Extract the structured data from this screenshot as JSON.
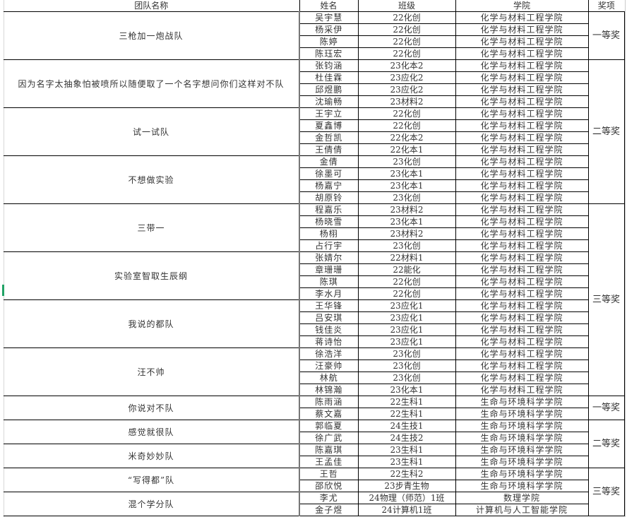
{
  "headers": {
    "team": "团队名称",
    "name": "姓名",
    "class": "班级",
    "college": "学院",
    "award": "奖项"
  },
  "teams": [
    {
      "team": "三枪加一炮战队",
      "members": [
        [
          "吴宇慧",
          "22化创",
          "化学与材料工程学院"
        ],
        [
          "杨采伊",
          "22化创",
          "化学与材料工程学院"
        ],
        [
          "陈婷",
          "22化创",
          "化学与材料工程学院"
        ],
        [
          "陈珏宏",
          "22化创",
          "化学与材料工程学院"
        ]
      ]
    },
    {
      "team": "因为名字太抽象怕被喷所以随便取了一个名字想问你们这样对不队",
      "members": [
        [
          "张钧涵",
          "23化本2",
          "化学与材料工程学院"
        ],
        [
          "杜佳霖",
          "23应化2",
          "化学与材料工程学院"
        ],
        [
          "邱煜鹏",
          "23应化2",
          "化学与材料工程学院"
        ],
        [
          "沈瑜畅",
          "23材料2",
          "化学与材料工程学院"
        ]
      ]
    },
    {
      "team": "试一试队",
      "members": [
        [
          "王宇立",
          "22化创",
          "化学与材料工程学院"
        ],
        [
          "夏鑫博",
          "22化创",
          "化学与材料工程学院"
        ],
        [
          "金哲凯",
          "22化本2",
          "化学与材料工程学院"
        ],
        [
          "王倩倩",
          "22化本1",
          "化学与材料工程学院"
        ]
      ]
    },
    {
      "team": "不想做实验",
      "members": [
        [
          "金倩",
          "23化创",
          "化学与材料工程学院"
        ],
        [
          "徐墨可",
          "23化本1",
          "化学与材料工程学院"
        ],
        [
          "杨嘉宁",
          "23化本1",
          "化学与材料工程学院"
        ],
        [
          "胡原铃",
          "23化创",
          "化学与材料工程学院"
        ]
      ]
    },
    {
      "team": "三带一",
      "members": [
        [
          "程嘉乐",
          "23材料2",
          "化学与材料工程学院"
        ],
        [
          "杨晓雪",
          "23化本1",
          "化学与材料工程学院"
        ],
        [
          "杨栩",
          "23材料2",
          "化学与材料工程学院"
        ],
        [
          "占行宇",
          "23化创",
          "化学与材料工程学院"
        ]
      ]
    },
    {
      "team": "实验室智取生辰纲",
      "members": [
        [
          "张婧尔",
          "22材料1",
          "化学与材料工程学院"
        ],
        [
          "章珊珊",
          "22能化",
          "化学与材料工程学院"
        ],
        [
          "陈琪",
          "22化创",
          "化学与材料工程学院"
        ],
        [
          "李水月",
          "22化创",
          "化学与材料工程学院"
        ]
      ]
    },
    {
      "team": "我说的都队",
      "members": [
        [
          "王华锋",
          "23应化1",
          "化学与材料工程学院"
        ],
        [
          "吕安琪",
          "23应化1",
          "化学与材料工程学院"
        ],
        [
          "钱佳炎",
          "23应化1",
          "化学与材料工程学院"
        ],
        [
          "蒋诗怡",
          "23应化1",
          "化学与材料工程学院"
        ]
      ]
    },
    {
      "team": "汪不帅",
      "members": [
        [
          "徐浩洋",
          "23化创",
          "化学与材料工程学院"
        ],
        [
          "汪豪帅",
          "23化创",
          "化学与材料工程学院"
        ],
        [
          "林航",
          "23化创",
          "化学与材料工程学院"
        ],
        [
          "林锦瀚",
          "23化本1",
          "化学与材料工程学院"
        ]
      ]
    },
    {
      "team": "你说对不队",
      "members": [
        [
          "陈雨涵",
          "22生科1",
          "生命与环境科学学院"
        ],
        [
          "蔡文嘉",
          "22生科1",
          "生命与环境科学学院"
        ]
      ]
    },
    {
      "team": "感觉就很队",
      "members": [
        [
          "郭临夏",
          "24生技1",
          "生命与环境科学学院"
        ],
        [
          "徐广武",
          "24生技2",
          "生命与环境科学学院"
        ]
      ]
    },
    {
      "team": "米奇妙妙队",
      "members": [
        [
          "陈嘉琪",
          "23生科1",
          "生命与环境科学学院"
        ],
        [
          "王孟佳",
          "23生科1",
          "生命与环境科学学院"
        ]
      ]
    },
    {
      "team": "“写得都”队",
      "members": [
        [
          "王哲",
          "22生科2",
          "生命与环境科学学院"
        ],
        [
          "邵欣悦",
          "23步青生物",
          "生命与环境科学学院"
        ]
      ]
    },
    {
      "team": "混个学分队",
      "members": [
        [
          "李尤",
          "24物理（师范）1班",
          "数理学院"
        ],
        [
          "金子煜",
          "24计算机1班",
          "计算机与人工智能学院"
        ]
      ]
    }
  ],
  "awards": [
    {
      "label": "一等奖",
      "teams": 1
    },
    {
      "label": "二等奖",
      "teams": 3
    },
    {
      "label": "三等奖",
      "teams": 4
    },
    {
      "label": "一等奖",
      "teams": 1
    },
    {
      "label": "二等奖",
      "teams": 2
    },
    {
      "label": "三等奖",
      "teams": 2
    }
  ]
}
